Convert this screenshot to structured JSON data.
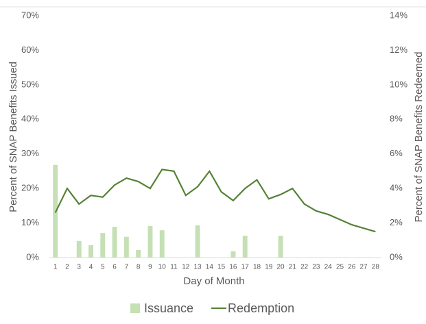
{
  "chart_data": {
    "type": "bar-line",
    "x_label": "Day of Month",
    "y_label": "Percent of SNAP Benefits Issued",
    "y2_label": "Percent of SNAP Benefits Redeemed",
    "categories": [
      "1",
      "2",
      "3",
      "4",
      "5",
      "6",
      "7",
      "8",
      "9",
      "10",
      "11",
      "12",
      "13",
      "14",
      "15",
      "16",
      "17",
      "18",
      "19",
      "20",
      "21",
      "22",
      "23",
      "24",
      "25",
      "26",
      "27",
      "28"
    ],
    "series": [
      {
        "name": "Issuance",
        "type": "bar",
        "color": "#c5e0b4",
        "values": [
          26.8,
          0,
          4.8,
          3.6,
          7.1,
          8.9,
          6.0,
          2.2,
          9.1,
          7.9,
          0,
          0,
          9.3,
          0,
          0,
          1.8,
          6.3,
          0,
          0,
          6.3,
          0,
          0,
          0,
          0,
          0,
          0,
          0,
          0
        ]
      },
      {
        "name": "Redemption",
        "type": "line",
        "axis": "y2",
        "color": "#548235",
        "values": [
          2.6,
          4.0,
          3.1,
          3.6,
          3.5,
          4.2,
          4.6,
          4.4,
          4.0,
          5.1,
          5.0,
          3.6,
          4.1,
          5.0,
          3.8,
          3.3,
          4.0,
          4.5,
          3.4,
          3.65,
          4.0,
          3.1,
          2.7,
          2.5,
          2.2,
          1.9,
          1.7,
          1.5
        ]
      }
    ],
    "ylim": [
      0,
      70
    ],
    "yticks": [
      {
        "value": 0,
        "label": "0%"
      },
      {
        "value": 10,
        "label": "10%"
      },
      {
        "value": 20,
        "label": "20%"
      },
      {
        "value": 30,
        "label": "30%"
      },
      {
        "value": 40,
        "label": "40%"
      },
      {
        "value": 50,
        "label": "50%"
      },
      {
        "value": 60,
        "label": "60%"
      },
      {
        "value": 70,
        "label": "70%"
      }
    ],
    "y2lim": [
      0,
      14
    ],
    "y2ticks": [
      {
        "value": 0,
        "label": "0%"
      },
      {
        "value": 2,
        "label": "2%"
      },
      {
        "value": 4,
        "label": "4%"
      },
      {
        "value": 6,
        "label": "6%"
      },
      {
        "value": 8,
        "label": "8%"
      },
      {
        "value": 10,
        "label": "10%"
      },
      {
        "value": 12,
        "label": "12%"
      },
      {
        "value": 14,
        "label": "14%"
      }
    ]
  }
}
